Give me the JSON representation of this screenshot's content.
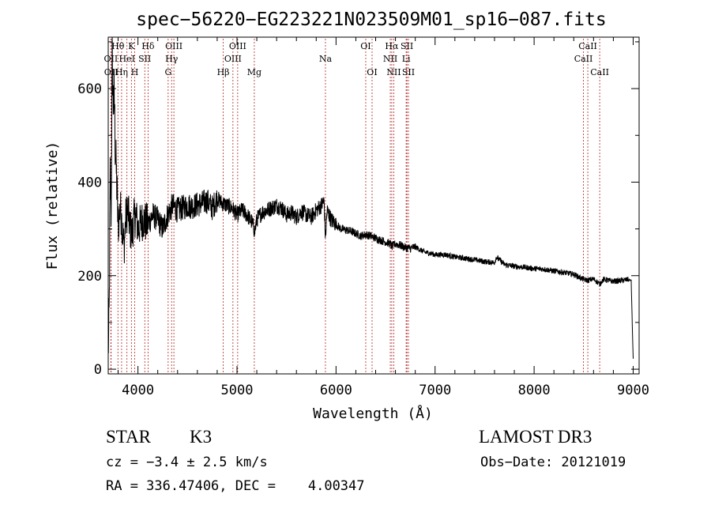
{
  "chart_data": {
    "type": "line",
    "title": "spec−56220−EG223221N023509M01_sp16−087.fits",
    "xlabel": "Wavelength (Å)",
    "ylabel": "Flux (relative)",
    "xlim": [
      3700,
      9060
    ],
    "ylim": [
      -10,
      710
    ],
    "x_ticks": [
      4000,
      5000,
      6000,
      7000,
      8000,
      9000
    ],
    "x_tick_labels": [
      "4000",
      "5000",
      "6000",
      "7000",
      "8000",
      "9000"
    ],
    "y_ticks": [
      0,
      200,
      400,
      600
    ],
    "y_tick_labels": [
      "0",
      "200",
      "400",
      "600"
    ],
    "series": [
      {
        "name": "flux",
        "x": [
          3700,
          3710,
          3720,
          3730,
          3740,
          3750,
          3760,
          3770,
          3780,
          3790,
          3800,
          3820,
          3840,
          3860,
          3880,
          3900,
          3920,
          3940,
          3960,
          3980,
          4000,
          4050,
          4100,
          4150,
          4200,
          4250,
          4300,
          4350,
          4400,
          4450,
          4500,
          4550,
          4600,
          4650,
          4700,
          4750,
          4800,
          4850,
          4900,
          4950,
          5000,
          5050,
          5100,
          5150,
          5180,
          5200,
          5250,
          5300,
          5350,
          5400,
          5450,
          5500,
          5550,
          5600,
          5650,
          5700,
          5750,
          5800,
          5850,
          5880,
          5893,
          5910,
          5950,
          6000,
          6050,
          6100,
          6150,
          6200,
          6250,
          6300,
          6350,
          6400,
          6450,
          6500,
          6550,
          6563,
          6600,
          6650,
          6700,
          6750,
          6800,
          6850,
          6900,
          6950,
          7000,
          7100,
          7200,
          7300,
          7400,
          7500,
          7600,
          7620,
          7700,
          7800,
          7900,
          8000,
          8100,
          8200,
          8300,
          8400,
          8498,
          8542,
          8600,
          8662,
          8700,
          8800,
          8900,
          8950,
          8980,
          9000
        ],
        "y": [
          40,
          120,
          420,
          330,
          680,
          560,
          600,
          480,
          430,
          370,
          300,
          350,
          310,
          260,
          330,
          340,
          300,
          290,
          320,
          330,
          300,
          320,
          310,
          330,
          320,
          300,
          330,
          350,
          340,
          345,
          350,
          348,
          352,
          355,
          360,
          345,
          365,
          355,
          350,
          345,
          330,
          340,
          330,
          315,
          295,
          320,
          335,
          340,
          345,
          350,
          345,
          330,
          335,
          325,
          338,
          330,
          325,
          340,
          350,
          360,
          280,
          340,
          320,
          310,
          300,
          298,
          295,
          290,
          285,
          288,
          285,
          280,
          276,
          272,
          268,
          262,
          268,
          265,
          260,
          258,
          262,
          255,
          250,
          248,
          245,
          245,
          240,
          237,
          234,
          230,
          228,
          240,
          224,
          220,
          218,
          215,
          214,
          210,
          207,
          203,
          192,
          190,
          193,
          182,
          192,
          188,
          190,
          192,
          190,
          20
        ]
      }
    ],
    "lines": [
      {
        "label": "OII",
        "wavelength": 3727,
        "row": 2
      },
      {
        "label": "OII",
        "wavelength": 3729,
        "row": 3
      },
      {
        "label": "Hθ",
        "wavelength": 3798,
        "row": 1
      },
      {
        "label": "Hη",
        "wavelength": 3835,
        "row": 3
      },
      {
        "label": "HeI",
        "wavelength": 3889,
        "row": 2
      },
      {
        "label": "K",
        "wavelength": 3934,
        "row": 1
      },
      {
        "label": "H",
        "wavelength": 3968,
        "row": 3
      },
      {
        "label": "SII",
        "wavelength": 4069,
        "row": 2
      },
      {
        "label": "Hδ",
        "wavelength": 4102,
        "row": 1
      },
      {
        "label": "G",
        "wavelength": 4305,
        "row": 3
      },
      {
        "label": "Hγ",
        "wavelength": 4340,
        "row": 2
      },
      {
        "label": "OIII",
        "wavelength": 4363,
        "row": 1
      },
      {
        "label": "Hβ",
        "wavelength": 4861,
        "row": 3
      },
      {
        "label": "OIII",
        "wavelength": 4959,
        "row": 2
      },
      {
        "label": "OIII",
        "wavelength": 5007,
        "row": 1
      },
      {
        "label": "Mg",
        "wavelength": 5175,
        "row": 3
      },
      {
        "label": "Na",
        "wavelength": 5893,
        "row": 2
      },
      {
        "label": "OI",
        "wavelength": 6300,
        "row": 1
      },
      {
        "label": "OI",
        "wavelength": 6364,
        "row": 3
      },
      {
        "label": "NII",
        "wavelength": 6548,
        "row": 2
      },
      {
        "label": "Hα",
        "wavelength": 6563,
        "row": 1
      },
      {
        "label": "NII",
        "wavelength": 6583,
        "row": 3
      },
      {
        "label": "Li",
        "wavelength": 6708,
        "row": 2
      },
      {
        "label": "SII",
        "wavelength": 6716,
        "row": 1
      },
      {
        "label": "SII",
        "wavelength": 6731,
        "row": 3
      },
      {
        "label": "CaII",
        "wavelength": 8498,
        "row": 2
      },
      {
        "label": "CaII",
        "wavelength": 8542,
        "row": 1
      },
      {
        "label": "CaII",
        "wavelength": 8662,
        "row": 3
      }
    ],
    "line_color": "#b22222"
  },
  "info": {
    "class_label": "STAR",
    "subclass": "K3",
    "survey": "LAMOST DR3",
    "redshift": "cz = −3.4 ± 2.5 km/s",
    "obs_date": "Obs−Date: 20121019",
    "coords": "RA = 336.47406, DEC =    4.00347"
  }
}
